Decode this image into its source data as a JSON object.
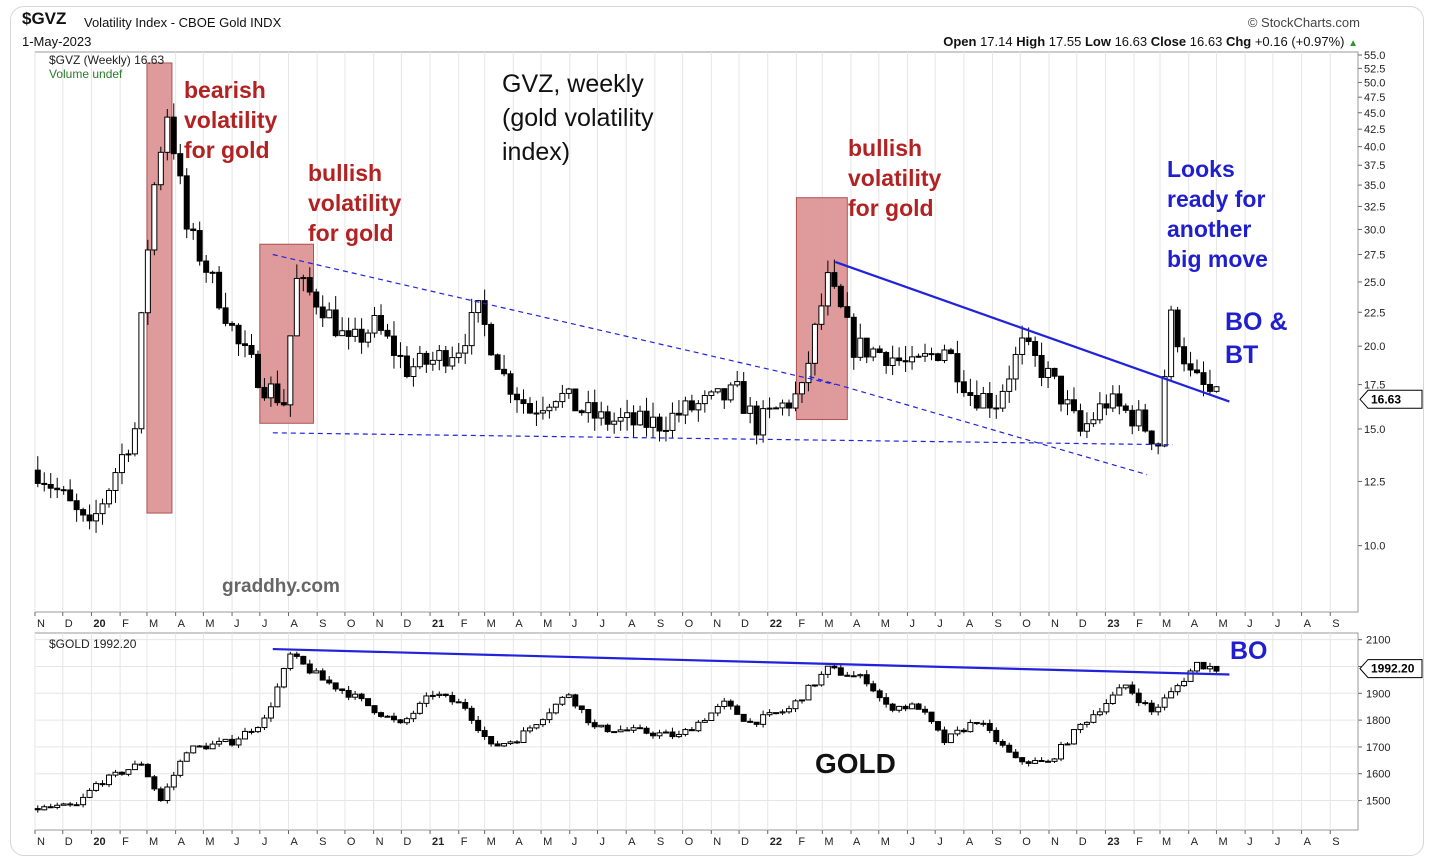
{
  "header": {
    "symbol": "$GVZ",
    "description": "Volatility Index - CBOE Gold INDX",
    "date": "1-May-2023",
    "credit": "© StockCharts.com",
    "ohlc": {
      "open_label": "Open",
      "open": "17.14",
      "high_label": "High",
      "high": "17.55",
      "low_label": "Low",
      "low": "16.63",
      "close_label": "Close",
      "close": "16.63",
      "chg_label": "Chg",
      "chg": "+0.16 (+0.97%)"
    }
  },
  "colors": {
    "candle": "#000000",
    "highlight": "#d98a8a",
    "highlight_border": "#b05050",
    "trend": "#2222dd",
    "label_red": "#b22222",
    "label_blue": "#1f1fd0",
    "grid": "#e6e6e6"
  },
  "chart_data": [
    {
      "type": "candlestick",
      "title": "GVZ, weekly (gold volatility index)",
      "legend": "$GVZ (Weekly) 16.63",
      "volume_label": "Volume undef",
      "last_value": "16.63",
      "y_scale": "log",
      "ylim": [
        9,
        55
      ],
      "y_ticks": [
        "55.0",
        "52.5",
        "50.0",
        "47.5",
        "45.0",
        "42.5",
        "40.0",
        "37.5",
        "35.0",
        "32.5",
        "30.0",
        "27.5",
        "25.0",
        "22.5",
        "20.0",
        "17.5",
        "15.0",
        "12.5",
        "10.0"
      ],
      "x_labels": [
        "N",
        "D",
        "20",
        "F",
        "M",
        "A",
        "M",
        "J",
        "J",
        "A",
        "S",
        "O",
        "N",
        "D",
        "21",
        "F",
        "M",
        "A",
        "M",
        "J",
        "J",
        "A",
        "S",
        "O",
        "N",
        "D",
        "22",
        "F",
        "M",
        "A",
        "M",
        "J",
        "J",
        "A",
        "S",
        "O",
        "N",
        "D",
        "23",
        "F",
        "M",
        "A",
        "M",
        "J",
        "J",
        "A",
        "S"
      ],
      "x_range": [
        "2019-11",
        "2023-09"
      ],
      "watermark": "graddhy.com",
      "annotations": [
        {
          "text": [
            "bearish",
            "volatility",
            "for gold"
          ],
          "color": "red"
        },
        {
          "text": [
            "bullish",
            "volatility",
            "for gold"
          ],
          "color": "red"
        },
        {
          "text": [
            "bullish",
            "volatility",
            "for gold"
          ],
          "color": "red"
        },
        {
          "text": [
            "Looks",
            "ready for",
            "another",
            "big move"
          ],
          "color": "blue"
        },
        {
          "text": [
            "BO &",
            "BT"
          ],
          "color": "blue"
        }
      ],
      "highlight_periods": [
        {
          "from": "2020-03",
          "to": "2020-03",
          "low": 11.2,
          "high": 53.5
        },
        {
          "from": "2020-07",
          "to": "2020-08",
          "low": 15.3,
          "high": 28.5
        },
        {
          "from": "2022-02",
          "to": "2022-03",
          "low": 15.5,
          "high": 33.5
        }
      ],
      "trendlines": [
        {
          "style": "dashed",
          "from": [
            "2020-07",
            27.5
          ],
          "to": [
            "2022-03",
            17.5
          ]
        },
        {
          "style": "dashed",
          "from": [
            "2020-07",
            14.8
          ],
          "to": [
            "2023-03",
            14.2
          ]
        },
        {
          "style": "dashed",
          "from": [
            "2022-02",
            18.0
          ],
          "to": [
            "2023-02",
            12.8
          ]
        },
        {
          "style": "solid",
          "from": [
            "2022-03",
            26.8
          ],
          "to": [
            "2023-05",
            16.5
          ]
        }
      ],
      "anchors": [
        [
          "2019-11-04",
          13.0
        ],
        [
          "2019-12-02",
          11.8
        ],
        [
          "2019-12-30",
          10.5
        ],
        [
          "2020-01-20",
          12.3
        ],
        [
          "2020-02-17",
          15.0
        ],
        [
          "2020-03-09",
          35.0
        ],
        [
          "2020-03-23",
          45.0
        ],
        [
          "2020-04-13",
          30.0
        ],
        [
          "2020-05-11",
          25.0
        ],
        [
          "2020-06-08",
          20.0
        ],
        [
          "2020-07-06",
          17.5
        ],
        [
          "2020-07-27",
          16.5
        ],
        [
          "2020-08-10",
          25.0
        ],
        [
          "2020-09-07",
          23.0
        ],
        [
          "2020-10-05",
          20.0
        ],
        [
          "2020-11-02",
          21.5
        ],
        [
          "2020-12-07",
          18.5
        ],
        [
          "2021-01-04",
          19.0
        ],
        [
          "2021-02-01",
          20.0
        ],
        [
          "2021-02-22",
          22.5
        ],
        [
          "2021-03-22",
          18.0
        ],
        [
          "2021-04-19",
          16.0
        ],
        [
          "2021-05-17",
          17.0
        ],
        [
          "2021-06-14",
          16.0
        ],
        [
          "2021-07-05",
          15.5
        ],
        [
          "2021-08-09",
          15.3
        ],
        [
          "2021-09-06",
          15.3
        ],
        [
          "2021-10-04",
          16.0
        ],
        [
          "2021-11-01",
          16.5
        ],
        [
          "2021-11-29",
          17.0
        ],
        [
          "2021-12-20",
          15.2
        ],
        [
          "2022-01-10",
          16.0
        ],
        [
          "2022-02-07",
          17.0
        ],
        [
          "2022-03-07",
          25.0
        ],
        [
          "2022-04-04",
          20.0
        ],
        [
          "2022-05-09",
          19.5
        ],
        [
          "2022-06-06",
          18.5
        ],
        [
          "2022-07-11",
          20.0
        ],
        [
          "2022-08-08",
          17.0
        ],
        [
          "2022-09-05",
          16.5
        ],
        [
          "2022-10-03",
          20.0
        ],
        [
          "2022-11-07",
          17.5
        ],
        [
          "2022-12-05",
          14.8
        ],
        [
          "2023-01-02",
          16.5
        ],
        [
          "2023-02-06",
          15.5
        ],
        [
          "2023-02-27",
          14.3
        ],
        [
          "2023-03-13",
          22.0
        ],
        [
          "2023-04-03",
          18.0
        ],
        [
          "2023-05-01",
          16.63
        ]
      ]
    },
    {
      "type": "candlestick",
      "title": "GOLD",
      "legend": "$GOLD 1992.20",
      "last_value": "1992.20",
      "ylim": [
        1420,
        2110
      ],
      "y_ticks": [
        "2100",
        "2000",
        "1900",
        "1800",
        "1700",
        "1600",
        "1500"
      ],
      "x_labels": [
        "N",
        "D",
        "20",
        "F",
        "M",
        "A",
        "M",
        "J",
        "J",
        "A",
        "S",
        "O",
        "N",
        "D",
        "21",
        "F",
        "M",
        "A",
        "M",
        "J",
        "J",
        "A",
        "S",
        "O",
        "N",
        "D",
        "22",
        "F",
        "M",
        "A",
        "M",
        "J",
        "J",
        "A",
        "S",
        "O",
        "N",
        "D",
        "23",
        "F",
        "M",
        "A",
        "M",
        "J",
        "J",
        "A",
        "S"
      ],
      "x_range": [
        "2019-11",
        "2023-09"
      ],
      "annotations": [
        {
          "text": [
            "BO"
          ],
          "color": "blue"
        }
      ],
      "trendlines": [
        {
          "style": "solid",
          "from": [
            "2020-07",
            2065
          ],
          "to": [
            "2023-05",
            1970
          ]
        }
      ],
      "anchors": [
        [
          "2019-11-04",
          1470
        ],
        [
          "2019-12-16",
          1480
        ],
        [
          "2020-01-06",
          1560
        ],
        [
          "2020-02-24",
          1640
        ],
        [
          "2020-03-16",
          1500
        ],
        [
          "2020-04-13",
          1690
        ],
        [
          "2020-06-01",
          1720
        ],
        [
          "2020-07-06",
          1800
        ],
        [
          "2020-08-03",
          2040
        ],
        [
          "2020-09-07",
          1950
        ],
        [
          "2020-10-05",
          1900
        ],
        [
          "2020-11-30",
          1780
        ],
        [
          "2021-01-04",
          1900
        ],
        [
          "2021-02-08",
          1850
        ],
        [
          "2021-03-08",
          1700
        ],
        [
          "2021-04-05",
          1730
        ],
        [
          "2021-05-31",
          1900
        ],
        [
          "2021-06-28",
          1770
        ],
        [
          "2021-08-09",
          1760
        ],
        [
          "2021-09-27",
          1740
        ],
        [
          "2021-11-15",
          1860
        ],
        [
          "2021-12-13",
          1790
        ],
        [
          "2022-01-24",
          1840
        ],
        [
          "2022-03-07",
          1990
        ],
        [
          "2022-04-18",
          1950
        ],
        [
          "2022-05-09",
          1850
        ],
        [
          "2022-06-13",
          1850
        ],
        [
          "2022-07-11",
          1720
        ],
        [
          "2022-08-15",
          1800
        ],
        [
          "2022-09-26",
          1650
        ],
        [
          "2022-10-31",
          1640
        ],
        [
          "2022-12-05",
          1780
        ],
        [
          "2023-01-23",
          1930
        ],
        [
          "2023-02-20",
          1830
        ],
        [
          "2023-03-13",
          1900
        ],
        [
          "2023-04-10",
          2010
        ],
        [
          "2023-05-01",
          1992.2
        ]
      ]
    }
  ]
}
